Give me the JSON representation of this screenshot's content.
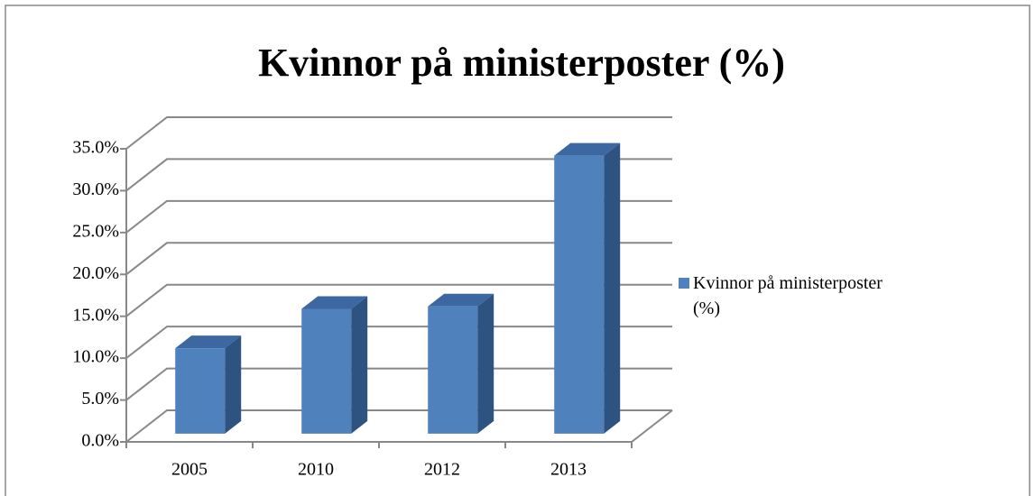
{
  "chart_data": {
    "type": "bar3d",
    "title": "Kvinnor på ministerposter (%)",
    "categories": [
      "2005",
      "2010",
      "2012",
      "2013"
    ],
    "series": [
      {
        "name": "Kvinnor på ministerposter (%)",
        "color": "#4f81bd",
        "values": [
          10.2,
          14.9,
          15.2,
          33.2
        ]
      }
    ],
    "ylim": [
      0,
      35
    ],
    "yticks": [
      {
        "value": 0,
        "label": "0.0%"
      },
      {
        "value": 5,
        "label": "5.0%"
      },
      {
        "value": 10,
        "label": "10.0%"
      },
      {
        "value": 15,
        "label": "15.0%"
      },
      {
        "value": 20,
        "label": "20.0%"
      },
      {
        "value": 25,
        "label": "25.0%"
      },
      {
        "value": 30,
        "label": "30.0%"
      },
      {
        "value": 35,
        "label": "35.0%"
      }
    ],
    "grid": true,
    "legend": "right"
  }
}
